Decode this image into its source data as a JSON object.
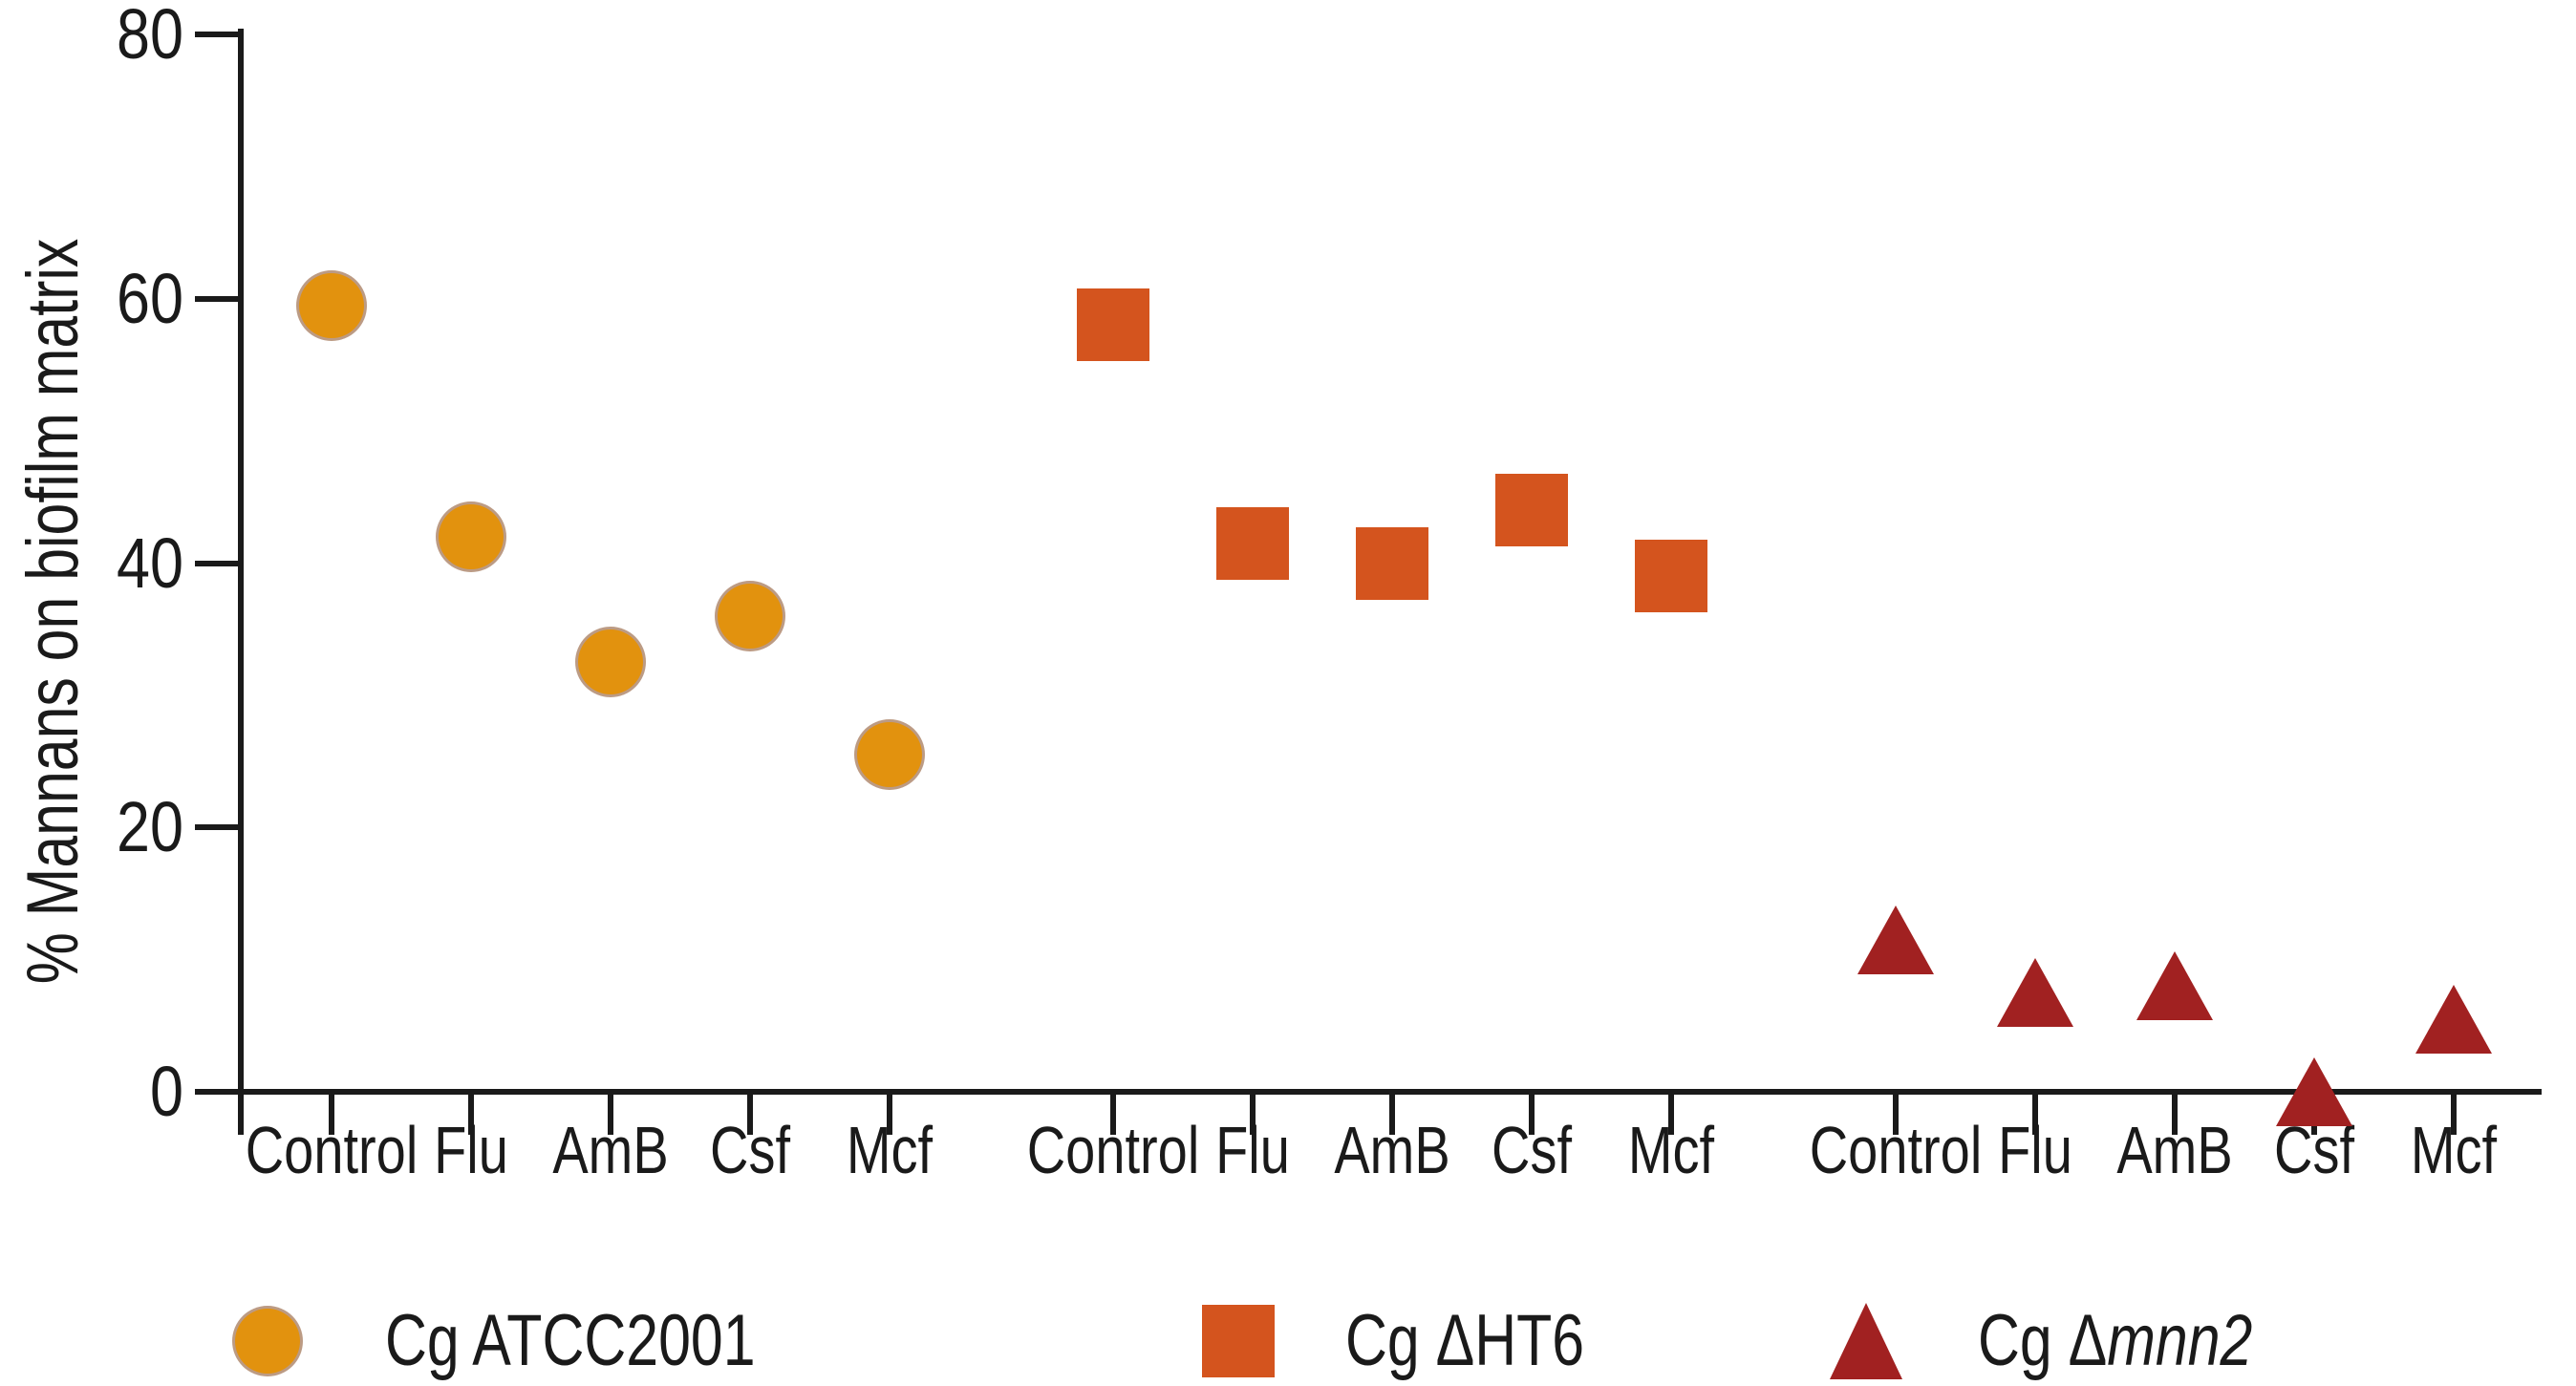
{
  "figure": {
    "background": "#ffffff",
    "axis_color": "#1a1a1a",
    "text_color": "#1a1a1a"
  },
  "chart_data": {
    "type": "scatter",
    "title": "",
    "xlabel": "",
    "ylabel": "% Mannans on biofilm matrix",
    "ylim": [
      0,
      80
    ],
    "yticks": [
      "0",
      "20",
      "40",
      "60",
      "80"
    ],
    "grid": false,
    "legend_position": "bottom",
    "categories": [
      "Control",
      "Flu",
      "AmB",
      "Csf",
      "Mcf"
    ],
    "series": [
      {
        "name": "Cg ATCC2001",
        "marker": "circle",
        "color": "#E2920E",
        "values": [
          59.5,
          42,
          32.5,
          36,
          25.5
        ],
        "legend_runs": [
          {
            "text": "Cg ATCC2001",
            "italic": false
          }
        ]
      },
      {
        "name": "Cg ΔHT6",
        "marker": "square",
        "color": "#D4541E",
        "values": [
          58,
          41.5,
          40,
          44,
          39
        ],
        "legend_runs": [
          {
            "text": "Cg ΔHT6",
            "italic": false
          }
        ]
      },
      {
        "name": "Cg Δmnn2",
        "marker": "triangle",
        "color": "#A12121",
        "values": [
          11.5,
          7.5,
          8,
          0,
          5.5
        ],
        "legend_runs": [
          {
            "text": "Cg  Δ",
            "italic": false
          },
          {
            "text": "mnn2",
            "italic": true
          }
        ]
      }
    ]
  }
}
